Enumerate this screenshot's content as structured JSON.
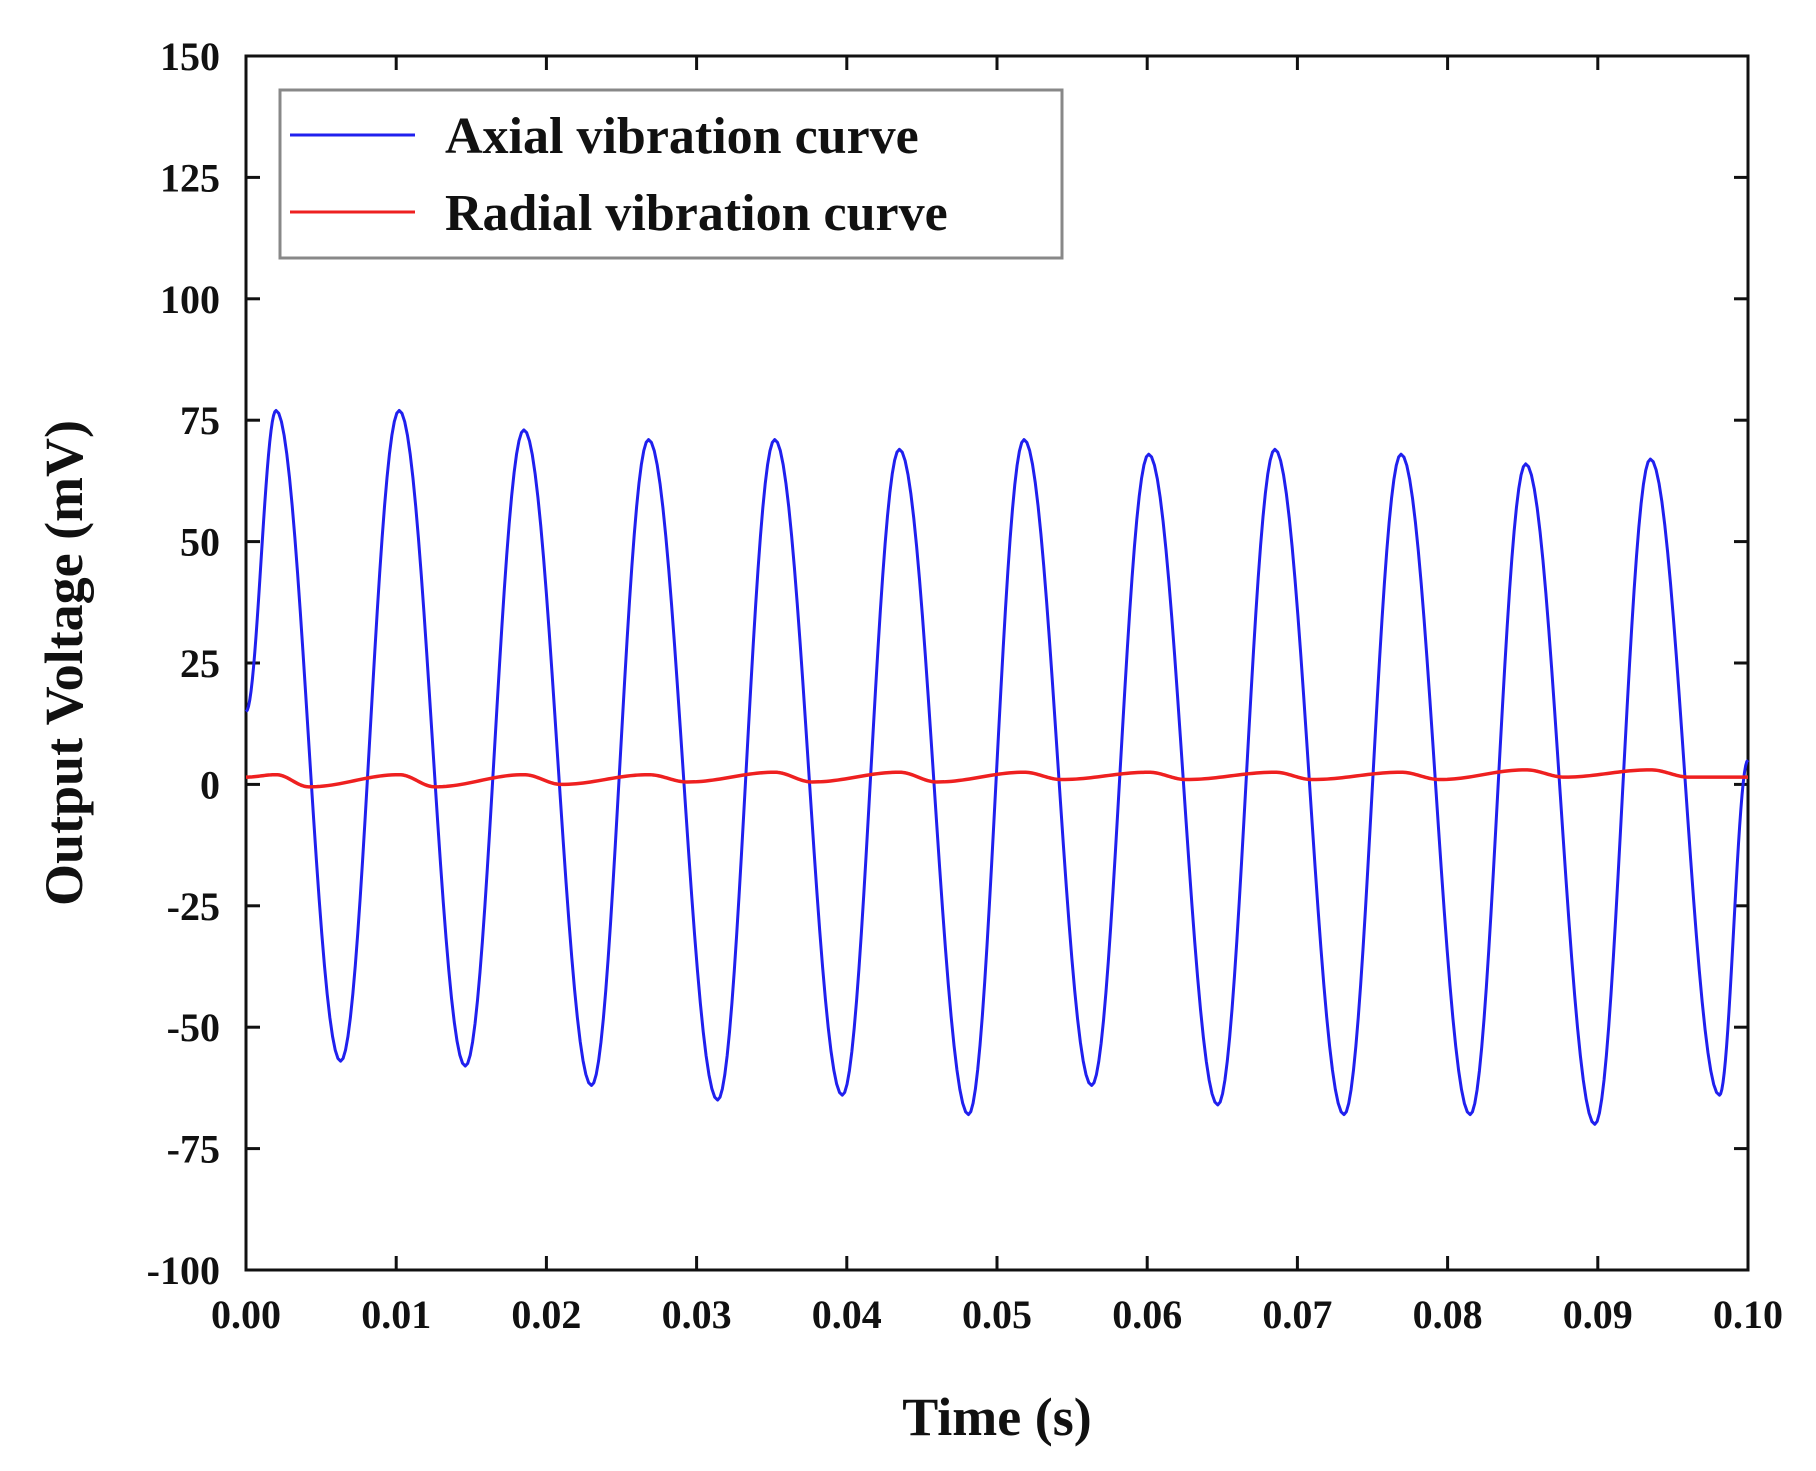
{
  "chart_data": {
    "type": "line",
    "title": "",
    "xlabel": "Time (s)",
    "ylabel": "Output Voltage (mV)",
    "xlim": [
      0,
      0.1
    ],
    "ylim": [
      -100,
      150
    ],
    "x_ticks": [
      0.0,
      0.01,
      0.02,
      0.03,
      0.04,
      0.05,
      0.06,
      0.07,
      0.08,
      0.09,
      0.1
    ],
    "x_tick_labels": [
      "0.00",
      "0.01",
      "0.02",
      "0.03",
      "0.04",
      "0.05",
      "0.06",
      "0.07",
      "0.08",
      "0.09",
      "0.10"
    ],
    "y_ticks": [
      -100,
      -75,
      -50,
      -25,
      0,
      25,
      50,
      75,
      100,
      125,
      150
    ],
    "y_tick_labels": [
      "-100",
      "-75",
      "-50",
      "-25",
      "0",
      "25",
      "50",
      "75",
      "100",
      "125",
      "150"
    ],
    "grid": false,
    "legend_position": "top-left",
    "series": [
      {
        "name": "Axial vibration curve",
        "color": "#2020ee",
        "x": [
          0.0,
          0.002,
          0.0063,
          0.0102,
          0.0146,
          0.0185,
          0.023,
          0.0268,
          0.0314,
          0.0352,
          0.0397,
          0.0435,
          0.0481,
          0.0518,
          0.0563,
          0.0601,
          0.0647,
          0.0685,
          0.0731,
          0.0769,
          0.0815,
          0.0852,
          0.0898,
          0.0935,
          0.0981,
          0.1
        ],
        "values": [
          15,
          77,
          -57,
          77,
          -58,
          73,
          -62,
          71,
          -65,
          71,
          -64,
          69,
          -68,
          71,
          -62,
          68,
          -66,
          69,
          -68,
          68,
          -68,
          66,
          -70,
          67,
          -64,
          5
        ]
      },
      {
        "name": "Radial vibration curve",
        "color": "#ee2020",
        "x": [
          0.0,
          0.002,
          0.0042,
          0.0102,
          0.0126,
          0.0185,
          0.021,
          0.0268,
          0.0294,
          0.0352,
          0.0377,
          0.0435,
          0.046,
          0.0518,
          0.0543,
          0.0601,
          0.0626,
          0.0685,
          0.071,
          0.0769,
          0.0795,
          0.0852,
          0.0878,
          0.0935,
          0.0961,
          0.1
        ],
        "values": [
          1.5,
          2,
          -0.5,
          2,
          -0.5,
          2,
          0,
          2,
          0.5,
          2.5,
          0.5,
          2.5,
          0.5,
          2.5,
          1,
          2.5,
          1,
          2.5,
          1,
          2.5,
          1,
          3,
          1.5,
          3,
          1.5,
          1.5
        ]
      }
    ]
  }
}
